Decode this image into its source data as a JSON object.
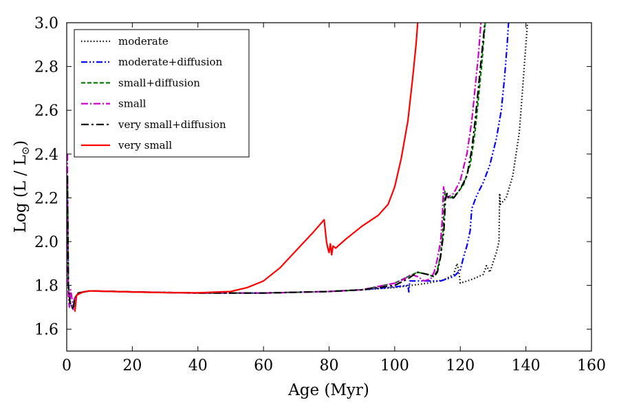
{
  "chart_data": {
    "type": "line",
    "title": "",
    "xlabel": "Age (Myr)",
    "ylabel_main": "Log (L / L",
    "ylabel_sub": "⊙",
    "ylabel_close": ")",
    "xlim": [
      0,
      160
    ],
    "ylim": [
      1.5,
      3.0
    ],
    "xticks": [
      0,
      20,
      40,
      60,
      80,
      100,
      120,
      140,
      160
    ],
    "xtick_labels": [
      "0",
      "20",
      "40",
      "60",
      "80",
      "100",
      "120",
      "140",
      "160"
    ],
    "yticks": [
      1.6,
      1.8,
      2.0,
      2.2,
      2.4,
      2.6,
      2.8,
      3.0
    ],
    "ytick_labels": [
      "1.6",
      "1.8",
      "2.0",
      "2.2",
      "2.4",
      "2.6",
      "2.8",
      "3.0"
    ],
    "grid": false,
    "legend_position": "top-left",
    "series": [
      {
        "name": "moderate",
        "color": "#000000",
        "dash": "1.5,3",
        "points": [
          [
            0.2,
            2.3
          ],
          [
            0.5,
            1.8
          ],
          [
            1.0,
            1.72
          ],
          [
            2.0,
            1.69
          ],
          [
            2.4,
            1.74
          ],
          [
            3.5,
            1.765
          ],
          [
            7,
            1.775
          ],
          [
            20,
            1.77
          ],
          [
            40,
            1.765
          ],
          [
            60,
            1.765
          ],
          [
            80,
            1.772
          ],
          [
            90,
            1.78
          ],
          [
            100,
            1.79
          ],
          [
            105,
            1.8
          ],
          [
            110,
            1.81
          ],
          [
            115,
            1.825
          ],
          [
            118,
            1.85
          ],
          [
            119,
            1.9
          ],
          [
            119.6,
            1.86
          ],
          [
            120,
            1.81
          ],
          [
            124,
            1.83
          ],
          [
            127,
            1.85
          ],
          [
            128,
            1.89
          ],
          [
            129,
            1.86
          ],
          [
            131,
            1.95
          ],
          [
            131.8,
            2.0
          ],
          [
            132,
            2.22
          ],
          [
            132.2,
            2.17
          ],
          [
            134,
            2.2
          ],
          [
            136,
            2.3
          ],
          [
            138,
            2.5
          ],
          [
            139,
            2.7
          ],
          [
            140,
            2.9
          ],
          [
            140.5,
            3.0
          ]
        ]
      },
      {
        "name": "moderate+diffusion",
        "color": "#0000ff",
        "dash": "9,3,2,3,2,3",
        "points": [
          [
            0.2,
            2.3
          ],
          [
            0.5,
            1.8
          ],
          [
            1.0,
            1.72
          ],
          [
            2.0,
            1.69
          ],
          [
            2.4,
            1.74
          ],
          [
            3.5,
            1.765
          ],
          [
            7,
            1.775
          ],
          [
            20,
            1.77
          ],
          [
            40,
            1.765
          ],
          [
            60,
            1.765
          ],
          [
            80,
            1.772
          ],
          [
            90,
            1.78
          ],
          [
            98,
            1.79
          ],
          [
            104,
            1.8
          ],
          [
            104.3,
            1.77
          ],
          [
            104.6,
            1.82
          ],
          [
            110,
            1.82
          ],
          [
            114,
            1.82
          ],
          [
            118,
            1.84
          ],
          [
            120,
            1.87
          ],
          [
            121,
            1.93
          ],
          [
            122,
            1.98
          ],
          [
            123,
            2.05
          ],
          [
            123.5,
            2.15
          ],
          [
            124,
            2.17
          ],
          [
            125,
            2.21
          ],
          [
            127,
            2.27
          ],
          [
            129,
            2.35
          ],
          [
            131,
            2.47
          ],
          [
            132.5,
            2.6
          ],
          [
            133.5,
            2.75
          ],
          [
            134.3,
            2.9
          ],
          [
            134.7,
            3.0
          ]
        ]
      },
      {
        "name": "small+diffusion",
        "color": "#008000",
        "dash": "6,3",
        "points": [
          [
            0.2,
            2.3
          ],
          [
            0.5,
            1.8
          ],
          [
            1.0,
            1.72
          ],
          [
            2.0,
            1.69
          ],
          [
            2.4,
            1.74
          ],
          [
            3.5,
            1.765
          ],
          [
            7,
            1.775
          ],
          [
            20,
            1.77
          ],
          [
            40,
            1.765
          ],
          [
            60,
            1.765
          ],
          [
            80,
            1.772
          ],
          [
            90,
            1.78
          ],
          [
            100,
            1.81
          ],
          [
            104,
            1.84
          ],
          [
            107,
            1.86
          ],
          [
            110,
            1.85
          ],
          [
            112,
            1.84
          ],
          [
            113,
            1.87
          ],
          [
            114,
            1.94
          ],
          [
            114.7,
            2.05
          ],
          [
            115,
            2.12
          ],
          [
            115.3,
            2.23
          ],
          [
            115.8,
            2.21
          ],
          [
            117,
            2.2
          ],
          [
            119,
            2.22
          ],
          [
            121,
            2.26
          ],
          [
            123,
            2.35
          ],
          [
            124.5,
            2.5
          ],
          [
            125.5,
            2.65
          ],
          [
            126.5,
            2.8
          ],
          [
            127.3,
            2.95
          ],
          [
            127.6,
            3.0
          ]
        ]
      },
      {
        "name": "small",
        "color": "#cc00cc",
        "dash": "10,3,2,3",
        "points": [
          [
            0.2,
            2.4
          ],
          [
            0.3,
            1.9
          ],
          [
            0.5,
            1.75
          ],
          [
            0.8,
            1.7
          ],
          [
            1.2,
            1.78
          ],
          [
            1.6,
            1.74
          ],
          [
            2.0,
            1.69
          ],
          [
            2.4,
            1.74
          ],
          [
            3.5,
            1.765
          ],
          [
            7,
            1.775
          ],
          [
            20,
            1.77
          ],
          [
            40,
            1.765
          ],
          [
            60,
            1.765
          ],
          [
            80,
            1.772
          ],
          [
            90,
            1.78
          ],
          [
            100,
            1.81
          ],
          [
            103,
            1.83
          ],
          [
            105,
            1.85
          ],
          [
            107,
            1.84
          ],
          [
            109,
            1.82
          ],
          [
            111,
            1.83
          ],
          [
            112,
            1.86
          ],
          [
            113,
            1.92
          ],
          [
            114,
            2.0
          ],
          [
            114.5,
            2.1
          ],
          [
            114.9,
            2.25
          ],
          [
            115.2,
            2.22
          ],
          [
            116,
            2.2
          ],
          [
            118,
            2.22
          ],
          [
            120,
            2.28
          ],
          [
            122,
            2.4
          ],
          [
            123.5,
            2.55
          ],
          [
            124.5,
            2.7
          ],
          [
            125.5,
            2.85
          ],
          [
            126.3,
            3.0
          ]
        ]
      },
      {
        "name": "very small+diffusion",
        "color": "#000000",
        "dash": "11,4,3,4",
        "points": [
          [
            0.2,
            2.3
          ],
          [
            0.5,
            1.8
          ],
          [
            1.0,
            1.72
          ],
          [
            2.0,
            1.69
          ],
          [
            2.4,
            1.74
          ],
          [
            3.5,
            1.765
          ],
          [
            7,
            1.775
          ],
          [
            20,
            1.77
          ],
          [
            40,
            1.765
          ],
          [
            60,
            1.765
          ],
          [
            80,
            1.772
          ],
          [
            90,
            1.78
          ],
          [
            100,
            1.8
          ],
          [
            104,
            1.83
          ],
          [
            107,
            1.86
          ],
          [
            110,
            1.85
          ],
          [
            112,
            1.84
          ],
          [
            113,
            1.86
          ],
          [
            114,
            1.93
          ],
          [
            115,
            2.05
          ],
          [
            115.5,
            2.2
          ],
          [
            116,
            2.22
          ],
          [
            116.5,
            2.2
          ],
          [
            118,
            2.2
          ],
          [
            120,
            2.24
          ],
          [
            122,
            2.3
          ],
          [
            123.5,
            2.42
          ],
          [
            124.5,
            2.55
          ],
          [
            125.5,
            2.7
          ],
          [
            126.5,
            2.85
          ],
          [
            127.5,
            3.0
          ]
        ]
      },
      {
        "name": "very small",
        "color": "#ff0000",
        "dash": "",
        "points": [
          [
            2.5,
            1.68
          ],
          [
            3,
            1.755
          ],
          [
            5,
            1.77
          ],
          [
            7,
            1.775
          ],
          [
            20,
            1.77
          ],
          [
            30,
            1.767
          ],
          [
            40,
            1.766
          ],
          [
            50,
            1.772
          ],
          [
            55,
            1.79
          ],
          [
            60,
            1.82
          ],
          [
            65,
            1.88
          ],
          [
            70,
            1.96
          ],
          [
            75,
            2.04
          ],
          [
            78.5,
            2.1
          ],
          [
            79.2,
            2.0
          ],
          [
            79.6,
            1.97
          ],
          [
            80,
            1.95
          ],
          [
            80.4,
            1.99
          ],
          [
            80.8,
            1.94
          ],
          [
            81.2,
            1.98
          ],
          [
            82,
            1.97
          ],
          [
            85,
            2.01
          ],
          [
            90,
            2.07
          ],
          [
            95,
            2.12
          ],
          [
            98,
            2.17
          ],
          [
            100,
            2.25
          ],
          [
            102,
            2.38
          ],
          [
            104,
            2.55
          ],
          [
            105.5,
            2.75
          ],
          [
            106.5,
            2.9
          ],
          [
            107,
            3.0
          ]
        ]
      }
    ]
  }
}
